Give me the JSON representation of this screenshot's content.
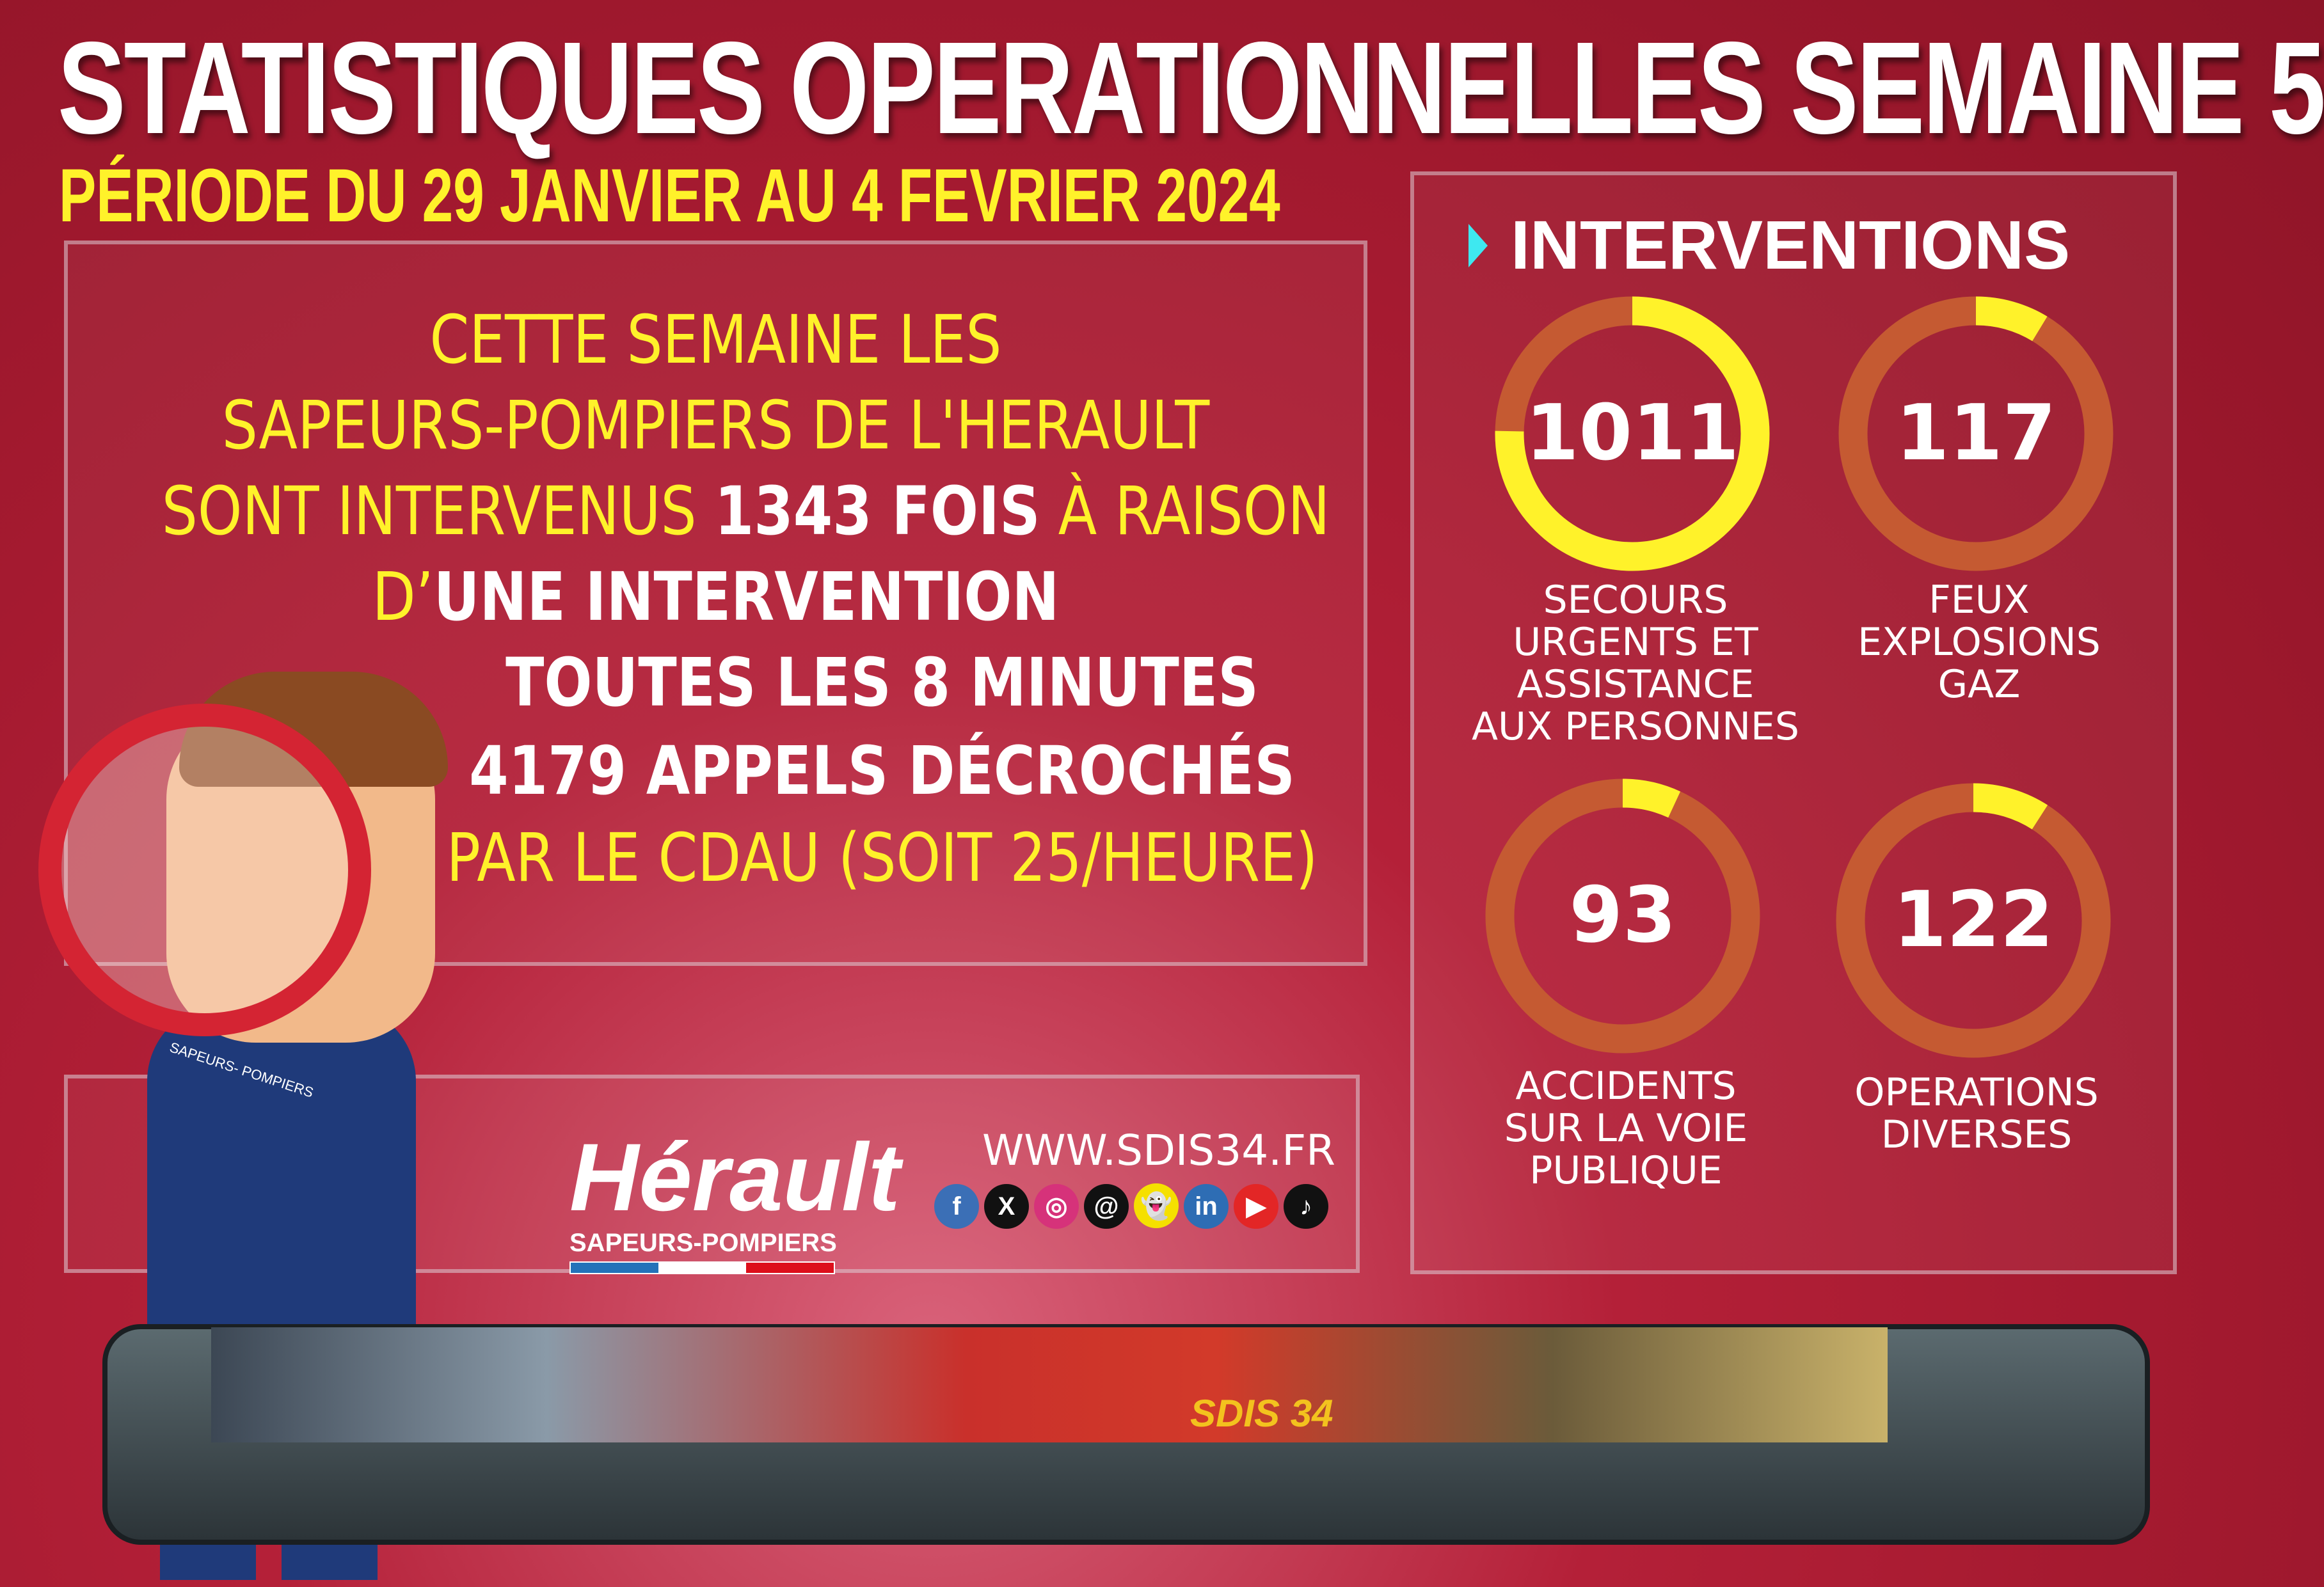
{
  "header": {
    "title": "STATISTIQUES OPERATIONNELLES SEMAINE 5",
    "period": "PÉRIODE DU 29 JANVIER AU 4 FEVRIER 2024"
  },
  "summary": {
    "line1": "CETTE SEMAINE LES",
    "line2": "SAPEURS-POMPIERS DE L'HERAULT",
    "line3a": "SONT INTERVENUS ",
    "line3b": "1343 FOIS",
    "line3c": " À RAISON",
    "line4a": "D’",
    "line4b": "UNE INTERVENTION",
    "line5": "TOUTES LES 8 MINUTES",
    "line6": "4179 APPELS DÉCROCHÉS",
    "line7": "PAR LE CDAU (SOIT 25/HEURE)"
  },
  "interventions": {
    "title": "INTERVENTIONS",
    "items": [
      {
        "value": "1011",
        "label": "SECOURS\nURGENTS ET\nASSISTANCE\nAUX  PERSONNES",
        "fraction": 0.753
      },
      {
        "value": "117",
        "label": "FEUX\nEXPLOSIONS\nGAZ",
        "fraction": 0.087
      },
      {
        "value": "93",
        "label": "ACCIDENTS\nSUR LA VOIE\nPUBLIQUE",
        "fraction": 0.069
      },
      {
        "value": "122",
        "label": "OPERATIONS\nDIVERSES",
        "fraction": 0.091
      }
    ],
    "colors": {
      "filled": "#fff22a",
      "track": "#c55a32"
    }
  },
  "footer": {
    "logo_word": "Hérault",
    "logo_sub": "SAPEURS-POMPIERS",
    "url": "WWW.SDIS34.FR",
    "social": [
      {
        "icon": "facebook-icon",
        "glyph": "f",
        "color": "#3b6fb6"
      },
      {
        "icon": "x-icon",
        "glyph": "X",
        "color": "#111111"
      },
      {
        "icon": "instagram-icon",
        "glyph": "◎",
        "color": "#d6327a"
      },
      {
        "icon": "threads-icon",
        "glyph": "@",
        "color": "#111111"
      },
      {
        "icon": "snapchat-icon",
        "glyph": "👻",
        "color": "#f5e000"
      },
      {
        "icon": "linkedin-icon",
        "glyph": "in",
        "color": "#2e6db4"
      },
      {
        "icon": "youtube-icon",
        "glyph": "▶",
        "color": "#e32626"
      },
      {
        "icon": "tiktok-icon",
        "glyph": "♪",
        "color": "#111111"
      }
    ],
    "badge": "SAPEURS- POMPIERS",
    "truck_label": "SDIS 34"
  }
}
